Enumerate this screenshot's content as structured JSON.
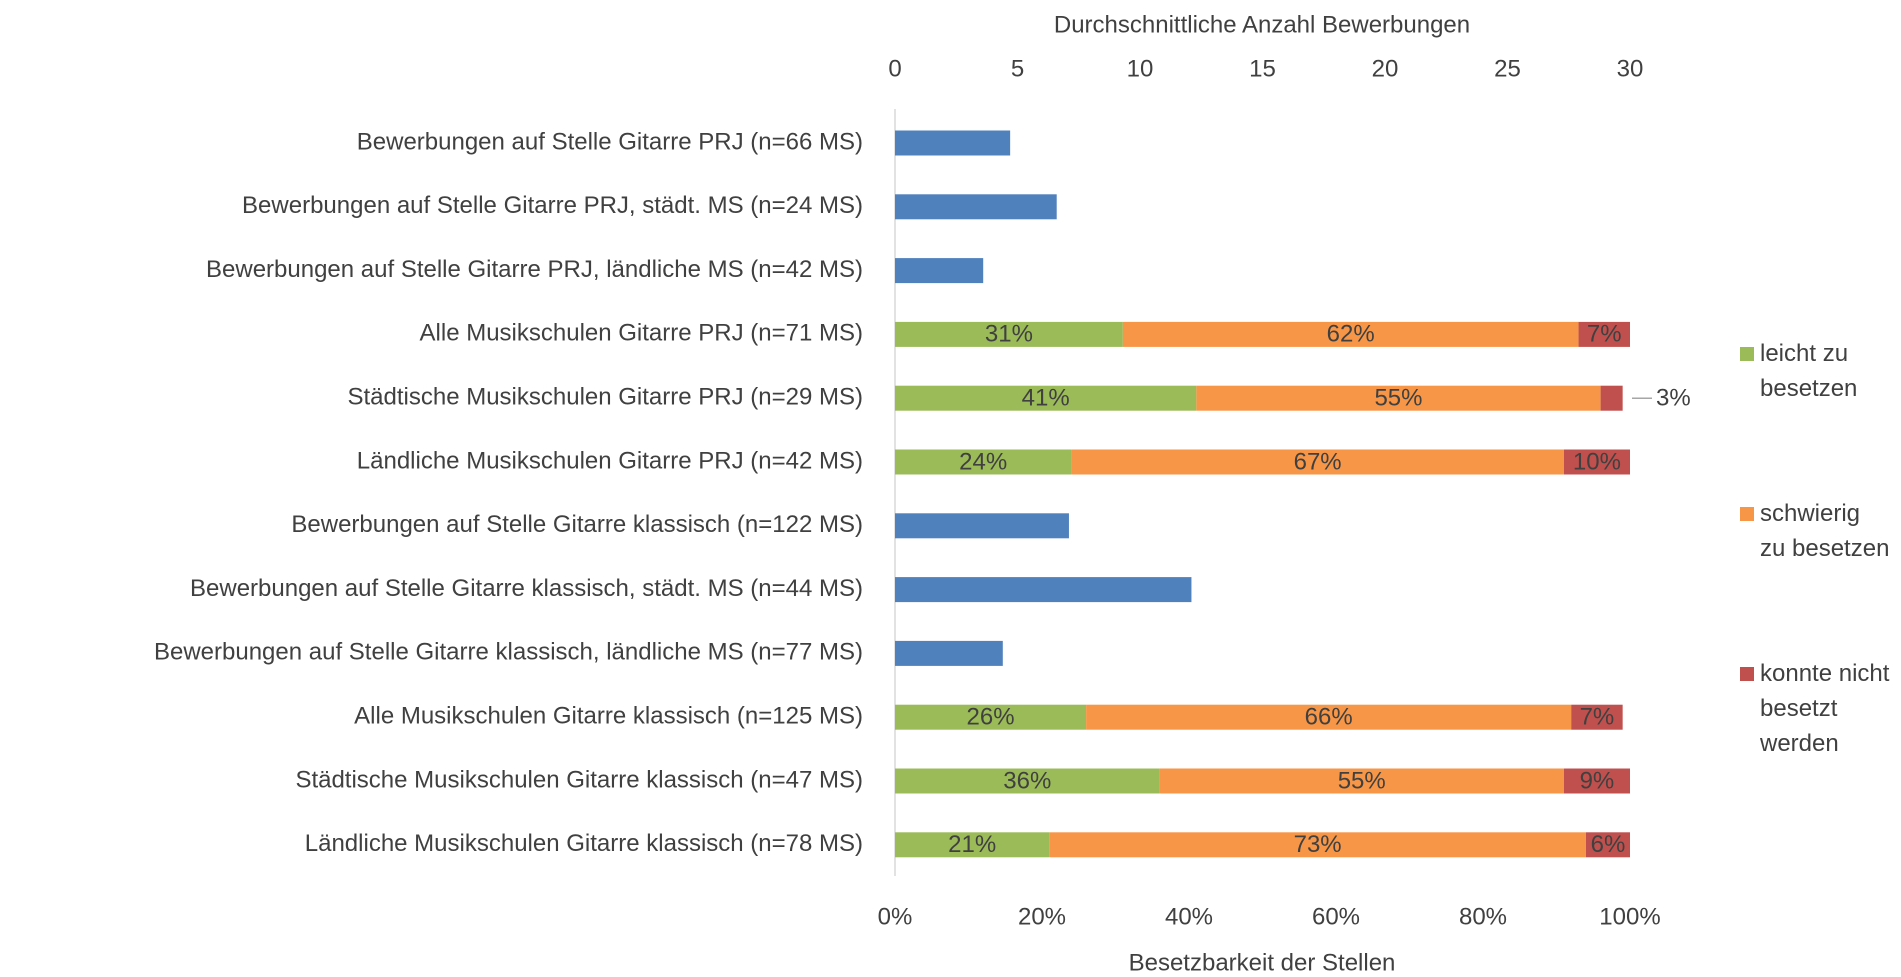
{
  "chart_data": {
    "type": "bar",
    "orientation": "horizontal",
    "stacked": true,
    "categories": [
      "Bewerbungen auf Stelle Gitarre PRJ (n=66 MS)",
      "Bewerbungen auf Stelle Gitarre PRJ, städt. MS (n=24 MS)",
      "Bewerbungen auf Stelle Gitarre PRJ, ländliche MS (n=42 MS)",
      "Alle Musikschulen Gitarre PRJ (n=71 MS)",
      "Städtische Musikschulen Gitarre PRJ (n=29 MS)",
      "Ländliche Musikschulen Gitarre PRJ (n=42 MS)",
      "Bewerbungen auf Stelle Gitarre klassisch (n=122 MS)",
      "Bewerbungen auf Stelle Gitarre klassisch, städt. MS (n=44 MS)",
      "Bewerbungen auf Stelle Gitarre klassisch, ländliche MS (n=77 MS)",
      "Alle Musikschulen Gitarre klassisch (n=125 MS)",
      "Städtische Musikschulen Gitarre klassisch (n=47 MS)",
      "Ländliche Musikschulen Gitarre klassisch (n=78 MS)"
    ],
    "bewerbungen": {
      "color": "#4f81bd",
      "axis": "x2",
      "values": [
        4.7,
        6.6,
        3.6,
        null,
        null,
        null,
        7.1,
        12.1,
        4.4,
        null,
        null,
        null
      ]
    },
    "series": [
      {
        "name": "leicht zu besetzen",
        "color": "#9bbb59",
        "values": [
          null,
          null,
          null,
          31,
          41,
          24,
          null,
          null,
          null,
          26,
          36,
          21
        ],
        "value_labels": [
          null,
          null,
          null,
          "31%",
          "41%",
          "24%",
          null,
          null,
          null,
          "26%",
          "36%",
          "21%"
        ]
      },
      {
        "name": "schwierig zu besetzen",
        "color": "#f79646",
        "values": [
          null,
          null,
          null,
          62,
          55,
          67,
          null,
          null,
          null,
          66,
          55,
          73
        ],
        "value_labels": [
          null,
          null,
          null,
          "62%",
          "55%",
          "67%",
          null,
          null,
          null,
          "66%",
          "55%",
          "73%"
        ]
      },
      {
        "name": "konnte nicht besetzt werden",
        "color": "#c0504d",
        "values": [
          null,
          null,
          null,
          7,
          3,
          10,
          null,
          null,
          null,
          7,
          9,
          6
        ],
        "value_labels": [
          null,
          null,
          null,
          "7%",
          "3%",
          "10%",
          null,
          null,
          null,
          "7%",
          "9%",
          "6%"
        ]
      }
    ],
    "xlabel": "Besetzbarkeit der Stellen",
    "xlim": [
      0,
      100
    ],
    "xticks": [
      {
        "value": 0,
        "label": "0%"
      },
      {
        "value": 20,
        "label": "20%"
      },
      {
        "value": 40,
        "label": "40%"
      },
      {
        "value": 60,
        "label": "60%"
      },
      {
        "value": 80,
        "label": "80%"
      },
      {
        "value": 100,
        "label": "100%"
      }
    ],
    "x2label": "Durchschnittliche Anzahl Bewerbungen",
    "x2lim": [
      0,
      30
    ],
    "x2ticks": [
      0,
      5,
      10,
      15,
      20,
      25,
      30
    ],
    "legend": "right"
  }
}
